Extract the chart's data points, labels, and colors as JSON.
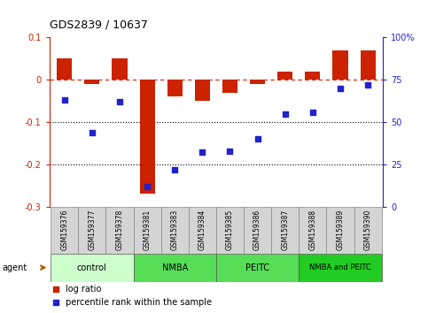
{
  "title": "GDS2839 / 10637",
  "samples": [
    "GSM159376",
    "GSM159377",
    "GSM159378",
    "GSM159381",
    "GSM159383",
    "GSM159384",
    "GSM159385",
    "GSM159386",
    "GSM159387",
    "GSM159388",
    "GSM159389",
    "GSM159390"
  ],
  "log_ratio": [
    0.05,
    -0.01,
    0.05,
    -0.27,
    -0.04,
    -0.05,
    -0.03,
    -0.01,
    0.02,
    0.02,
    0.07,
    0.07
  ],
  "percentile_rank": [
    63,
    44,
    62,
    12,
    22,
    32,
    33,
    40,
    55,
    56,
    70,
    72
  ],
  "bar_color": "#cc2200",
  "dot_color": "#2222cc",
  "ylim_left": [
    -0.3,
    0.1
  ],
  "ylim_right": [
    0,
    100
  ],
  "yticks_left": [
    -0.3,
    -0.2,
    -0.1,
    0.0,
    0.1
  ],
  "ytick_labels_left": [
    "-0.3",
    "-0.2",
    "-0.1",
    "0",
    "0.1"
  ],
  "yticks_right": [
    0,
    25,
    50,
    75,
    100
  ],
  "ytick_labels_right": [
    "0",
    "25",
    "50",
    "75",
    "100%"
  ],
  "dotted_lines": [
    -0.1,
    -0.2
  ],
  "groups": [
    {
      "label": "control",
      "start": 0,
      "end": 3,
      "color": "#ccffcc"
    },
    {
      "label": "NMBA",
      "start": 3,
      "end": 6,
      "color": "#55dd55"
    },
    {
      "label": "PEITC",
      "start": 6,
      "end": 9,
      "color": "#55dd55"
    },
    {
      "label": "NMBA and PEITC",
      "start": 9,
      "end": 12,
      "color": "#22cc22"
    }
  ],
  "agent_label": "agent",
  "legend_items": [
    {
      "label": "log ratio",
      "color": "#cc2200"
    },
    {
      "label": "percentile rank within the sample",
      "color": "#2222cc"
    }
  ]
}
